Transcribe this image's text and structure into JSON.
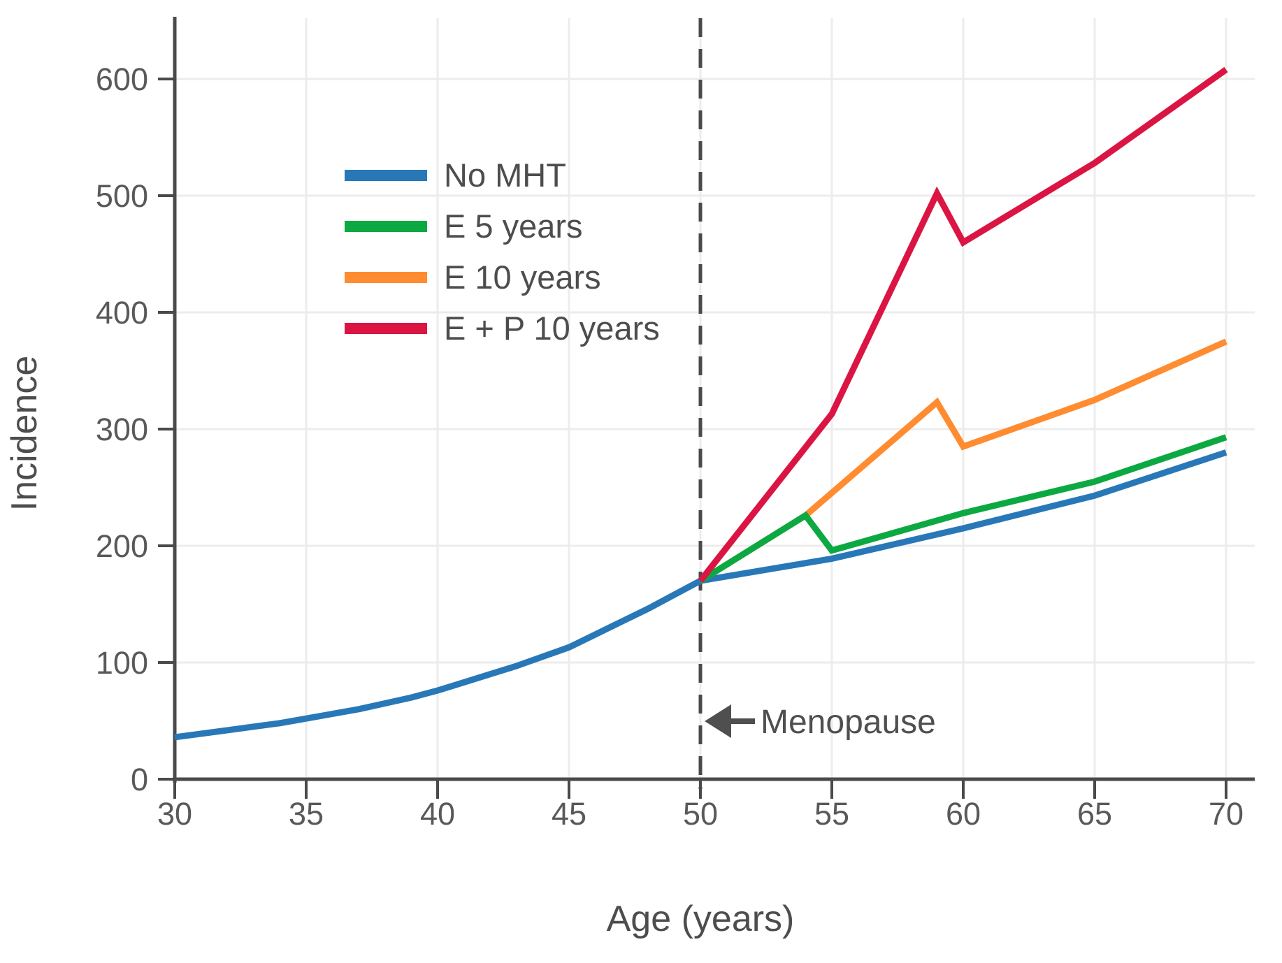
{
  "figure": {
    "background": "#ffffff",
    "axis_color": "#4a4a4a",
    "grid_color": "#ececec",
    "tick_label_color": "#595959",
    "title_color": "#4d4d4d"
  },
  "chart_data": {
    "type": "line",
    "title": "",
    "xlabel": "Age (years)",
    "ylabel": "Incidence",
    "xlim": [
      30,
      70
    ],
    "ylim": [
      0,
      650
    ],
    "x_ticks": [
      30,
      35,
      40,
      45,
      50,
      55,
      60,
      65,
      70
    ],
    "y_ticks": [
      0,
      100,
      200,
      300,
      400,
      500,
      600
    ],
    "x_gridlines": [
      35,
      40,
      45,
      50,
      55,
      60,
      65,
      70
    ],
    "grid": true,
    "legend_position": "upper left inside plot",
    "draw_order": [
      0,
      2,
      1,
      3
    ],
    "series": [
      {
        "name": "No MHT",
        "color": "#2878b8",
        "points": [
          [
            30,
            36
          ],
          [
            31,
            39
          ],
          [
            32,
            42
          ],
          [
            33,
            45
          ],
          [
            34,
            48
          ],
          [
            35,
            52
          ],
          [
            36,
            56
          ],
          [
            37,
            60
          ],
          [
            38,
            65
          ],
          [
            39,
            70
          ],
          [
            40,
            76
          ],
          [
            41,
            83
          ],
          [
            42,
            90
          ],
          [
            43,
            97
          ],
          [
            44,
            105
          ],
          [
            45,
            113
          ],
          [
            46,
            124
          ],
          [
            47,
            135
          ],
          [
            48,
            146
          ],
          [
            49,
            158
          ],
          [
            50,
            170
          ],
          [
            55,
            189
          ],
          [
            60,
            215
          ],
          [
            65,
            243
          ],
          [
            70,
            280
          ]
        ]
      },
      {
        "name": "E 5 years",
        "color": "#0ca942",
        "points": [
          [
            50,
            170
          ],
          [
            54,
            226
          ],
          [
            55,
            196
          ],
          [
            60,
            228
          ],
          [
            65,
            255
          ],
          [
            70,
            293
          ]
        ]
      },
      {
        "name": "E 10 years",
        "color": "#ff8c30",
        "points": [
          [
            50,
            170
          ],
          [
            54,
            226
          ],
          [
            59,
            323
          ],
          [
            60,
            285
          ],
          [
            65,
            325
          ],
          [
            70,
            375
          ]
        ]
      },
      {
        "name": "E + P 10 years",
        "color": "#db1543",
        "points": [
          [
            50,
            170
          ],
          [
            55,
            313
          ],
          [
            59,
            502
          ],
          [
            60,
            460
          ],
          [
            65,
            528
          ],
          [
            70,
            608
          ]
        ]
      }
    ],
    "vline": {
      "x": 50,
      "style": "dashed",
      "color": "#4a4a4a"
    },
    "annotation": {
      "text": "Menopause",
      "arrow_direction": "left",
      "arrow_points_to_x": 50,
      "y_value": 50
    }
  }
}
